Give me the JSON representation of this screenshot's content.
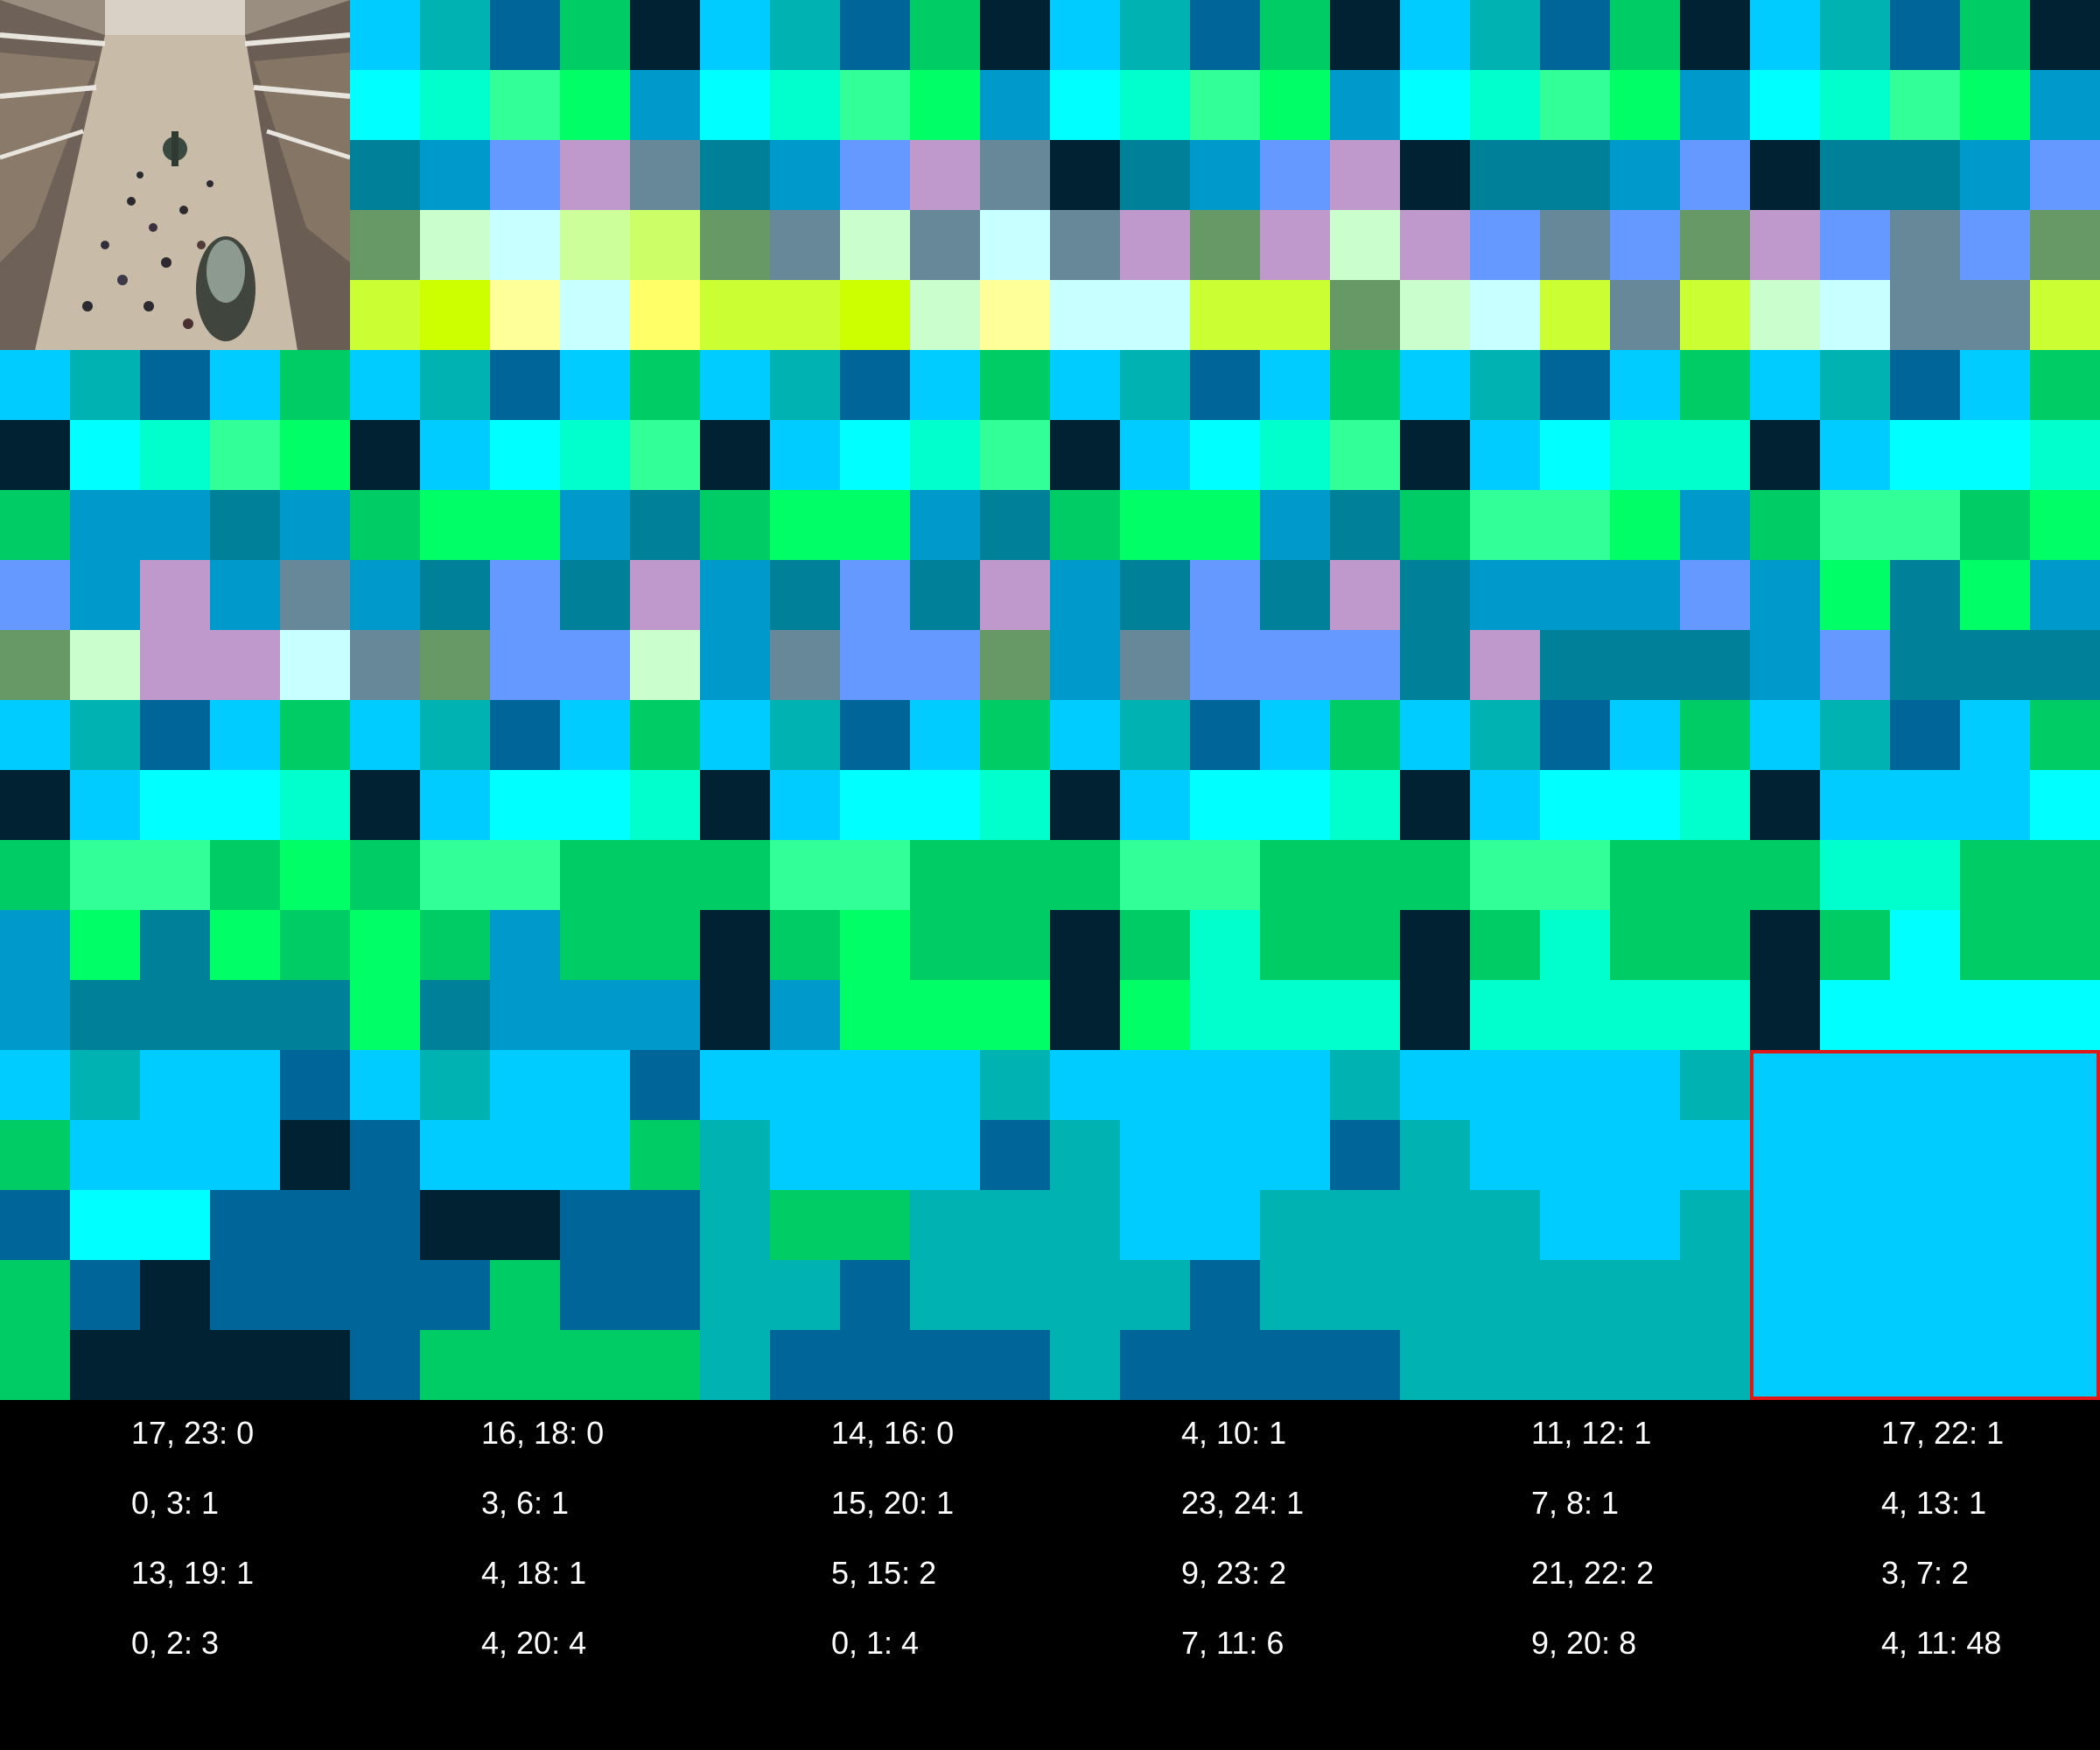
{
  "grid": {
    "rows": [
      [
        "T",
        "T",
        "T",
        "T",
        "T",
        "C",
        "F",
        "B",
        "E",
        "K",
        "C",
        "F",
        "B",
        "E",
        "K",
        "C",
        "F",
        "B",
        "E",
        "K",
        "C",
        "F",
        "B",
        "E",
        "K",
        "C",
        "F",
        "B",
        "E",
        "K"
      ],
      [
        "T",
        "T",
        "T",
        "T",
        "T",
        "A",
        "D",
        "G",
        "H",
        "N",
        "A",
        "D",
        "G",
        "H",
        "N",
        "A",
        "D",
        "G",
        "H",
        "N",
        "A",
        "D",
        "G",
        "H",
        "N",
        "A",
        "D",
        "G",
        "H",
        "N"
      ],
      [
        "T",
        "T",
        "T",
        "T",
        "T",
        "O",
        "N",
        "P",
        "Q",
        "S",
        "O",
        "N",
        "P",
        "Q",
        "S",
        "K",
        "O",
        "N",
        "P",
        "Q",
        "K",
        "O",
        "O",
        "N",
        "P",
        "K",
        "O",
        "O",
        "N",
        "P"
      ],
      [
        "T",
        "T",
        "T",
        "T",
        "T",
        "R",
        "I",
        "J",
        "L",
        "M",
        "R",
        "S",
        "I",
        "S",
        "J",
        "S",
        "Q",
        "R",
        "Q",
        "I",
        "Q",
        "P",
        "S",
        "P",
        "R",
        "Q",
        "P",
        "S",
        "P",
        "R"
      ],
      [
        "T",
        "T",
        "T",
        "T",
        "T",
        "U",
        "V",
        "W",
        "J",
        "X",
        "U",
        "U",
        "V",
        "I",
        "W",
        "J",
        "J",
        "U",
        "U",
        "R",
        "I",
        "J",
        "U",
        "S",
        "U",
        "I",
        "J",
        "S",
        "S",
        "U"
      ],
      [
        "C",
        "F",
        "B",
        "C",
        "E",
        "C",
        "F",
        "B",
        "C",
        "E",
        "C",
        "F",
        "B",
        "C",
        "E",
        "C",
        "F",
        "B",
        "C",
        "E",
        "C",
        "F",
        "B",
        "C",
        "E",
        "C",
        "F",
        "B",
        "C",
        "E"
      ],
      [
        "K",
        "A",
        "D",
        "G",
        "H",
        "K",
        "C",
        "A",
        "D",
        "G",
        "K",
        "C",
        "A",
        "D",
        "G",
        "K",
        "C",
        "A",
        "D",
        "G",
        "K",
        "C",
        "A",
        "D",
        "D",
        "K",
        "C",
        "A",
        "A",
        "D"
      ],
      [
        "E",
        "N",
        "N",
        "O",
        "N",
        "E",
        "H",
        "H",
        "N",
        "O",
        "E",
        "H",
        "H",
        "N",
        "O",
        "E",
        "H",
        "H",
        "N",
        "O",
        "E",
        "G",
        "G",
        "H",
        "N",
        "E",
        "G",
        "G",
        "E",
        "H"
      ],
      [
        "P",
        "N",
        "Q",
        "N",
        "S",
        "N",
        "O",
        "P",
        "O",
        "Q",
        "N",
        "O",
        "P",
        "O",
        "Q",
        "N",
        "O",
        "P",
        "O",
        "Q",
        "O",
        "N",
        "N",
        "N",
        "P",
        "N",
        "H",
        "O",
        "H",
        "N"
      ],
      [
        "R",
        "I",
        "Q",
        "Q",
        "J",
        "S",
        "R",
        "P",
        "P",
        "I",
        "N",
        "S",
        "P",
        "P",
        "R",
        "N",
        "S",
        "P",
        "P",
        "P",
        "O",
        "Q",
        "O",
        "O",
        "O",
        "N",
        "P",
        "O",
        "O",
        "O"
      ],
      [
        "C",
        "F",
        "B",
        "C",
        "E",
        "C",
        "F",
        "B",
        "C",
        "E",
        "C",
        "F",
        "B",
        "C",
        "E",
        "C",
        "F",
        "B",
        "C",
        "E",
        "C",
        "F",
        "B",
        "C",
        "E",
        "C",
        "F",
        "B",
        "C",
        "E"
      ],
      [
        "K",
        "C",
        "A",
        "A",
        "D",
        "K",
        "C",
        "A",
        "A",
        "D",
        "K",
        "C",
        "A",
        "A",
        "D",
        "K",
        "C",
        "A",
        "A",
        "D",
        "K",
        "C",
        "A",
        "A",
        "D",
        "K",
        "C",
        "C",
        "C",
        "A"
      ],
      [
        "E",
        "G",
        "G",
        "E",
        "H",
        "E",
        "G",
        "G",
        "E",
        "E",
        "E",
        "G",
        "G",
        "E",
        "E",
        "E",
        "G",
        "G",
        "E",
        "E",
        "E",
        "G",
        "G",
        "E",
        "E",
        "E",
        "D",
        "D",
        "E",
        "E"
      ],
      [
        "N",
        "H",
        "O",
        "H",
        "E",
        "H",
        "E",
        "N",
        "E",
        "E",
        "K",
        "E",
        "H",
        "E",
        "E",
        "K",
        "E",
        "D",
        "E",
        "E",
        "K",
        "E",
        "D",
        "E",
        "E",
        "K",
        "E",
        "A",
        "E",
        "E"
      ],
      [
        "N",
        "O",
        "O",
        "O",
        "O",
        "H",
        "O",
        "N",
        "N",
        "N",
        "K",
        "N",
        "H",
        "H",
        "H",
        "K",
        "H",
        "D",
        "D",
        "D",
        "K",
        "D",
        "D",
        "D",
        "D",
        "K",
        "A",
        "A",
        "A",
        "A"
      ],
      [
        "C",
        "F",
        "C",
        "C",
        "B",
        "C",
        "F",
        "C",
        "C",
        "B",
        "C",
        "C",
        "C",
        "C",
        "F",
        "C",
        "C",
        "C",
        "C",
        "F",
        "C",
        "C",
        "C",
        "C",
        "F",
        "C",
        "C",
        "C",
        "C",
        "C"
      ],
      [
        "E",
        "C",
        "C",
        "C",
        "K",
        "B",
        "C",
        "C",
        "C",
        "E",
        "F",
        "C",
        "C",
        "C",
        "B",
        "F",
        "C",
        "C",
        "C",
        "B",
        "F",
        "C",
        "C",
        "C",
        "C",
        "C",
        "C",
        "C",
        "C",
        "C"
      ],
      [
        "B",
        "A",
        "A",
        "B",
        "B",
        "B",
        "K",
        "K",
        "B",
        "B",
        "F",
        "E",
        "E",
        "F",
        "F",
        "F",
        "C",
        "C",
        "F",
        "F",
        "F",
        "F",
        "C",
        "C",
        "F",
        "C",
        "C",
        "C",
        "C",
        "C"
      ],
      [
        "E",
        "B",
        "K",
        "B",
        "B",
        "B",
        "B",
        "E",
        "B",
        "B",
        "F",
        "F",
        "B",
        "F",
        "F",
        "F",
        "F",
        "B",
        "F",
        "F",
        "F",
        "F",
        "F",
        "F",
        "F",
        "C",
        "C",
        "C",
        "C",
        "C"
      ],
      [
        "E",
        "K",
        "K",
        "K",
        "K",
        "B",
        "E",
        "E",
        "E",
        "E",
        "F",
        "B",
        "B",
        "B",
        "B",
        "F",
        "B",
        "B",
        "B",
        "B",
        "F",
        "F",
        "F",
        "F",
        "F",
        "C",
        "C",
        "C",
        "C",
        "C"
      ]
    ]
  },
  "palette": {
    "A": "#00ffff",
    "B": "#006699",
    "C": "#00ccff",
    "D": "#00ffcc",
    "E": "#00cc66",
    "F": "#00b3b3",
    "G": "#33ff99",
    "H": "#00ff66",
    "I": "#c8ffcc",
    "J": "#c8ffff",
    "K": "#002233",
    "L": "#ccff99",
    "M": "#ccff66",
    "N": "#0099cc",
    "O": "#008099",
    "P": "#6699ff",
    "Q": "#bf99cc",
    "R": "#669966",
    "S": "#668899",
    "U": "#ccff33",
    "V": "#ccff00",
    "W": "#ffff99",
    "X": "#ffff66"
  },
  "thumbnail": {
    "icon": "atrium-photo-icon"
  },
  "highlight": {
    "color": "#e01818",
    "cell": "4, 11"
  },
  "labels": [
    [
      "17, 23: 0",
      "16, 18: 0",
      "14, 16: 0",
      "4, 10: 1",
      "11, 12: 1",
      "17, 22: 1"
    ],
    [
      "0, 3: 1",
      "3, 6: 1",
      "15, 20: 1",
      "23, 24: 1",
      "7, 8: 1",
      "4, 13: 1"
    ],
    [
      "13, 19: 1",
      "4, 18: 1",
      "5, 15: 2",
      "9, 23: 2",
      "21, 22: 2",
      "3, 7: 2"
    ],
    [
      "0, 2: 3",
      "4, 20: 4",
      "0, 1: 4",
      "7, 11: 6",
      "9, 20: 8",
      "4, 11: 48"
    ]
  ]
}
